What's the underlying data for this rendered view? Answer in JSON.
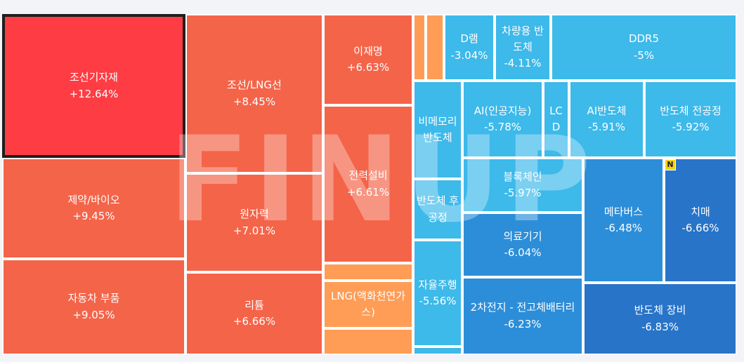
{
  "chart_data": {
    "type": "treemap",
    "watermark": "FINUP",
    "badge_label": "N",
    "color_scale": {
      "up_strong": "#fe3c43",
      "up": "#f46449",
      "up_light": "#ff9c55",
      "down_light": "#3db9ea",
      "down": "#2c8ed9",
      "down_strong": "#2874c8"
    },
    "cells": [
      {
        "name": "조선기자재",
        "change": "+12.64%",
        "value": 12.64,
        "color": "#fe3c43",
        "selected": true
      },
      {
        "name": "제약/바이오",
        "change": "+9.45%",
        "value": 9.45,
        "color": "#f46449"
      },
      {
        "name": "자동차 부품",
        "change": "+9.05%",
        "value": 9.05,
        "color": "#f46449"
      },
      {
        "name": "조선/LNG선",
        "change": "+8.45%",
        "value": 8.45,
        "color": "#f46449"
      },
      {
        "name": "원자력",
        "change": "+7.01%",
        "value": 7.01,
        "color": "#f46449"
      },
      {
        "name": "리튬",
        "change": "+6.66%",
        "value": 6.66,
        "color": "#f46449"
      },
      {
        "name": "이재명",
        "change": "+6.63%",
        "value": 6.63,
        "color": "#f46449"
      },
      {
        "name": "전력설비",
        "change": "+6.61%",
        "value": 6.61,
        "color": "#f46449"
      },
      {
        "name": "",
        "change": "",
        "color": "#ff9c55"
      },
      {
        "name": "LNG(액화천연가스)",
        "change": "",
        "color": "#ff9c55"
      },
      {
        "name": "",
        "change": "",
        "color": "#ff9c55"
      },
      {
        "name": "",
        "change": "",
        "color": "#ff9c55"
      },
      {
        "name": "",
        "change": "",
        "color": "#ff9c55"
      },
      {
        "name": "D램",
        "change": "-3.04%",
        "value": -3.04,
        "color": "#3db9ea"
      },
      {
        "name": "차량용 반도체",
        "change": "-4.11%",
        "value": -4.11,
        "color": "#3db9ea"
      },
      {
        "name": "DDR5",
        "change": "-5%",
        "value": -5,
        "color": "#3db9ea"
      },
      {
        "name": "비메모리 반도체",
        "change": "",
        "color": "#3db9ea"
      },
      {
        "name": "AI(인공지능)",
        "change": "-5.78%",
        "value": -5.78,
        "color": "#3db9ea"
      },
      {
        "name": "LCD",
        "change": "",
        "color": "#3db9ea"
      },
      {
        "name": "AI반도체",
        "change": "-5.91%",
        "value": -5.91,
        "color": "#3db9ea"
      },
      {
        "name": "반도체 전공정",
        "change": "-5.92%",
        "value": -5.92,
        "color": "#3db9ea"
      },
      {
        "name": "반도체 후공정",
        "change": "",
        "color": "#3db9ea"
      },
      {
        "name": "블록체인",
        "change": "-5.97%",
        "value": -5.97,
        "color": "#3db9ea"
      },
      {
        "name": "자율주행",
        "change": "-5.56%",
        "value": -5.56,
        "color": "#3db9ea"
      },
      {
        "name": "",
        "change": "",
        "color": "#3db9ea"
      },
      {
        "name": "의료기기",
        "change": "-6.04%",
        "value": -6.04,
        "color": "#2c8ed9"
      },
      {
        "name": "2차전지 - 전고체배터리",
        "change": "-6.23%",
        "value": -6.23,
        "color": "#2c8ed9"
      },
      {
        "name": "메타버스",
        "change": "-6.48%",
        "value": -6.48,
        "color": "#2c8ed9"
      },
      {
        "name": "치매",
        "change": "-6.66%",
        "value": -6.66,
        "color": "#2874c8",
        "badge": true
      },
      {
        "name": "반도체 장비",
        "change": "-6.83%",
        "value": -6.83,
        "color": "#2874c8"
      }
    ]
  }
}
